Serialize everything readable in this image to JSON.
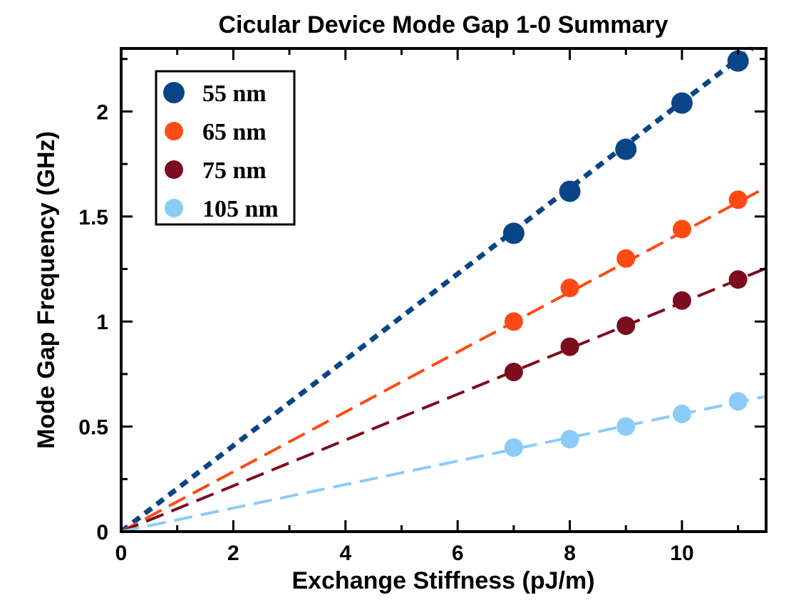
{
  "chart_data": {
    "type": "scatter",
    "title": "Cicular Device Mode Gap 1-0 Summary",
    "xlabel": "Exchange Stiffness (pJ/m)",
    "ylabel": "Mode Gap Frequency (GHz)",
    "xlim": [
      0,
      11.5
    ],
    "ylim": [
      0,
      2.3
    ],
    "xticks": [
      0,
      2,
      4,
      6,
      8,
      10
    ],
    "yticks": [
      0,
      0.5,
      1,
      1.5,
      2
    ],
    "xtick_labels": [
      "0",
      "2",
      "4",
      "6",
      "8",
      "10"
    ],
    "ytick_labels": [
      "0",
      "0.5",
      "1",
      "1.5",
      "2"
    ],
    "grid": false,
    "legend_position": "top-left",
    "series": [
      {
        "name": "55 nm",
        "color": "#0a4587",
        "marker": "large-circle",
        "line_style": "dotted",
        "fit_slope": 0.2045,
        "x": [
          7,
          8,
          9,
          10,
          11
        ],
        "y": [
          1.42,
          1.62,
          1.82,
          2.04,
          2.24
        ]
      },
      {
        "name": "65 nm",
        "color": "#ff4a14",
        "marker": "circle",
        "line_style": "long-dash",
        "fit_slope": 0.1425,
        "x": [
          7,
          8,
          9,
          10,
          11
        ],
        "y": [
          1.0,
          1.16,
          1.3,
          1.44,
          1.58
        ]
      },
      {
        "name": "75 nm",
        "color": "#7b0d1e",
        "marker": "circle",
        "line_style": "long-dash",
        "fit_slope": 0.109,
        "x": [
          7,
          8,
          9,
          10,
          11
        ],
        "y": [
          0.76,
          0.88,
          0.98,
          1.1,
          1.2
        ]
      },
      {
        "name": "105 nm",
        "color": "#8bcbf7",
        "marker": "circle",
        "line_style": "long-dash",
        "fit_slope": 0.056,
        "x": [
          7,
          8,
          9,
          10,
          11
        ],
        "y": [
          0.4,
          0.44,
          0.5,
          0.56,
          0.62
        ]
      }
    ]
  }
}
